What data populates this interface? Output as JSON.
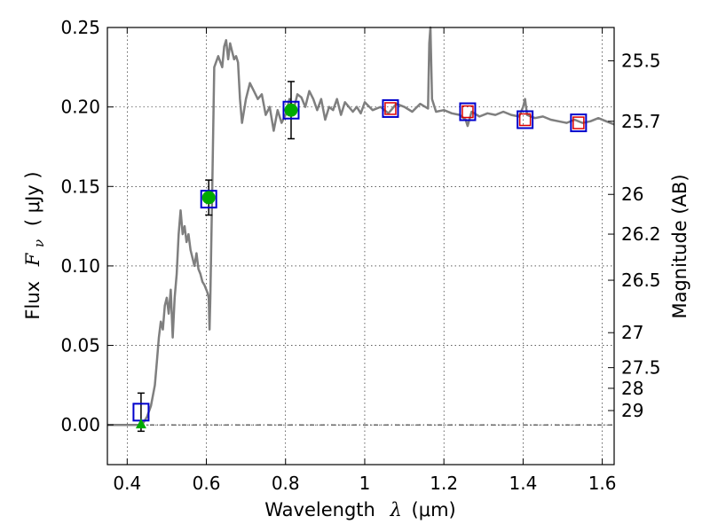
{
  "chart_data": {
    "type": "line",
    "title": "",
    "xlabel": {
      "prefix": "Wavelength",
      "symbol": "λ",
      "units": "(μm)"
    },
    "ylabel": {
      "prefix": "Flux",
      "symbol": "F",
      "subscript": "ν",
      "units": "( μJy )"
    },
    "y2label": "Magnitude (AB)",
    "xlim": [
      0.35,
      1.63
    ],
    "ylim": [
      -0.025,
      0.25
    ],
    "grid": true,
    "x_ticks": [
      0.4,
      0.6,
      0.8,
      1.0,
      1.2,
      1.4,
      1.6
    ],
    "x_tick_labels": [
      "0.4",
      "0.6",
      "0.8",
      "1",
      "1.2",
      "1.4",
      "1.6"
    ],
    "y_ticks": [
      0.0,
      0.05,
      0.1,
      0.15,
      0.2,
      0.25
    ],
    "y_tick_labels": [
      "0.00",
      "0.05",
      "0.10",
      "0.15",
      "0.20",
      "0.25"
    ],
    "mag_ticks": [
      {
        "label": "25.5",
        "flux": 0.229
      },
      {
        "label": "25.7",
        "flux": 0.191
      },
      {
        "label": "26",
        "flux": 0.145
      },
      {
        "label": "26.2",
        "flux": 0.12
      },
      {
        "label": "26.5",
        "flux": 0.091
      },
      {
        "label": "27",
        "flux": 0.058
      },
      {
        "label": "27.5",
        "flux": 0.036
      },
      {
        "label": "28",
        "flux": 0.023
      },
      {
        "label": "29",
        "flux": 0.009
      }
    ],
    "zero_line": 0.0,
    "colors": {
      "spectrum": "#7f7f7f",
      "box": "#0000cc",
      "inner": "#dd0000",
      "detection": "#00aa00",
      "upper_limit": "#00aa00"
    },
    "spectrum": {
      "name": "",
      "x": [
        0.35,
        0.43,
        0.44,
        0.45,
        0.46,
        0.47,
        0.475,
        0.48,
        0.485,
        0.49,
        0.495,
        0.5,
        0.505,
        0.51,
        0.515,
        0.52,
        0.525,
        0.53,
        0.535,
        0.54,
        0.545,
        0.55,
        0.555,
        0.56,
        0.565,
        0.57,
        0.575,
        0.58,
        0.585,
        0.59,
        0.595,
        0.6,
        0.603,
        0.606,
        0.608,
        0.61,
        0.615,
        0.62,
        0.63,
        0.64,
        0.645,
        0.65,
        0.655,
        0.66,
        0.665,
        0.67,
        0.675,
        0.68,
        0.685,
        0.69,
        0.7,
        0.71,
        0.72,
        0.73,
        0.74,
        0.75,
        0.76,
        0.77,
        0.78,
        0.79,
        0.8,
        0.81,
        0.82,
        0.83,
        0.84,
        0.85,
        0.86,
        0.87,
        0.88,
        0.89,
        0.9,
        0.91,
        0.92,
        0.93,
        0.94,
        0.95,
        0.96,
        0.97,
        0.98,
        0.99,
        1.0,
        1.02,
        1.04,
        1.06,
        1.08,
        1.1,
        1.12,
        1.14,
        1.16,
        1.163,
        1.166,
        1.17,
        1.18,
        1.2,
        1.22,
        1.24,
        1.255,
        1.26,
        1.27,
        1.29,
        1.31,
        1.33,
        1.35,
        1.37,
        1.39,
        1.4,
        1.405,
        1.41,
        1.43,
        1.45,
        1.47,
        1.49,
        1.51,
        1.53,
        1.55,
        1.57,
        1.59,
        1.61,
        1.63
      ],
      "y": [
        0.0,
        0.0,
        0.001,
        0.005,
        0.012,
        0.025,
        0.04,
        0.055,
        0.065,
        0.06,
        0.075,
        0.08,
        0.07,
        0.085,
        0.055,
        0.08,
        0.095,
        0.12,
        0.135,
        0.12,
        0.125,
        0.115,
        0.12,
        0.11,
        0.105,
        0.1,
        0.108,
        0.098,
        0.095,
        0.09,
        0.088,
        0.085,
        0.083,
        0.08,
        0.06,
        0.08,
        0.15,
        0.225,
        0.232,
        0.225,
        0.238,
        0.242,
        0.23,
        0.24,
        0.235,
        0.23,
        0.232,
        0.228,
        0.205,
        0.19,
        0.205,
        0.215,
        0.21,
        0.205,
        0.208,
        0.195,
        0.2,
        0.185,
        0.198,
        0.19,
        0.195,
        0.205,
        0.198,
        0.208,
        0.206,
        0.2,
        0.21,
        0.205,
        0.198,
        0.205,
        0.192,
        0.2,
        0.198,
        0.205,
        0.195,
        0.203,
        0.2,
        0.197,
        0.2,
        0.196,
        0.203,
        0.198,
        0.2,
        0.196,
        0.202,
        0.2,
        0.197,
        0.202,
        0.199,
        0.24,
        0.252,
        0.205,
        0.197,
        0.198,
        0.196,
        0.195,
        0.192,
        0.188,
        0.197,
        0.194,
        0.196,
        0.195,
        0.197,
        0.195,
        0.194,
        0.2,
        0.205,
        0.195,
        0.193,
        0.194,
        0.192,
        0.191,
        0.19,
        0.192,
        0.19,
        0.191,
        0.193,
        0.191,
        0.189
      ]
    },
    "photometry_boxes": [
      {
        "x": 0.435,
        "y": 0.008,
        "style": "box"
      },
      {
        "x": 0.606,
        "y": 0.142,
        "style": "box"
      },
      {
        "x": 0.814,
        "y": 0.198,
        "style": "box"
      },
      {
        "x": 1.065,
        "y": 0.199,
        "style": "box-red"
      },
      {
        "x": 1.26,
        "y": 0.197,
        "style": "box-red"
      },
      {
        "x": 1.405,
        "y": 0.192,
        "style": "box-red"
      },
      {
        "x": 1.54,
        "y": 0.19,
        "style": "box-red"
      }
    ],
    "measurements": [
      {
        "x": 0.435,
        "y": 0.008,
        "yerr": 0.012,
        "marker": "triangle"
      },
      {
        "x": 0.606,
        "y": 0.143,
        "yerr": 0.011,
        "marker": "circle"
      },
      {
        "x": 0.814,
        "y": 0.198,
        "yerr": 0.018,
        "marker": "circle"
      }
    ]
  }
}
